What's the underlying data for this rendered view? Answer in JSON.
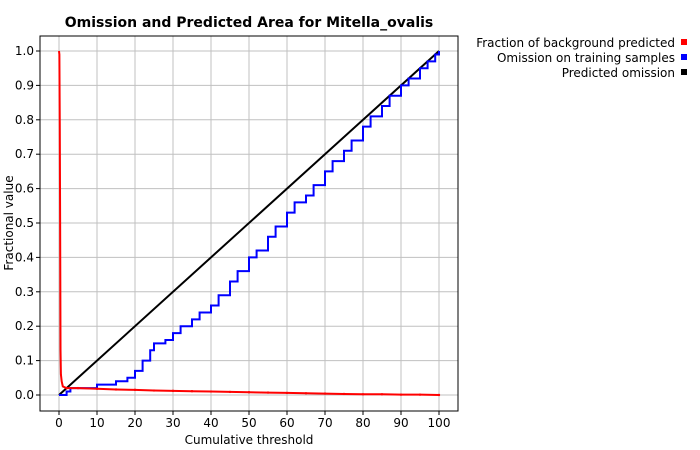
{
  "chart_data": {
    "type": "line",
    "title": "Omission and Predicted Area for Mitella_ovalis",
    "xlabel": "Cumulative threshold",
    "ylabel": "Fractional value",
    "xlim": [
      0,
      100
    ],
    "ylim": [
      0,
      1
    ],
    "x_ticks": [
      "0",
      "10",
      "20",
      "30",
      "40",
      "50",
      "60",
      "70",
      "80",
      "90",
      "100"
    ],
    "y_ticks": [
      "0.0",
      "0.1",
      "0.2",
      "0.3",
      "0.4",
      "0.5",
      "0.6",
      "0.7",
      "0.8",
      "0.9",
      "1.0"
    ],
    "x_tick_values": [
      0,
      10,
      20,
      30,
      40,
      50,
      60,
      70,
      80,
      90,
      100
    ],
    "y_tick_values": [
      0,
      0.1,
      0.2,
      0.3,
      0.4,
      0.5,
      0.6,
      0.7,
      0.8,
      0.9,
      1.0
    ],
    "grid": true,
    "legend_position": "top-right, outside plot",
    "series": [
      {
        "name": "Fraction of background predicted",
        "color": "#ff0000",
        "x": [
          0,
          0.1,
          0.2,
          0.3,
          0.4,
          0.5,
          0.7,
          1,
          2,
          5,
          10,
          15,
          20,
          25,
          30,
          35,
          40,
          45,
          50,
          55,
          60,
          65,
          70,
          75,
          80,
          85,
          90,
          95,
          100
        ],
        "y": [
          1.0,
          0.99,
          0.79,
          0.5,
          0.13,
          0.06,
          0.04,
          0.025,
          0.02,
          0.02,
          0.018,
          0.016,
          0.015,
          0.013,
          0.012,
          0.011,
          0.01,
          0.009,
          0.008,
          0.007,
          0.006,
          0.005,
          0.004,
          0.003,
          0.002,
          0.002,
          0.001,
          0.001,
          0.0
        ]
      },
      {
        "name": "Omission on training samples",
        "color": "#0000ff",
        "x": [
          0,
          1,
          2,
          3,
          5,
          8,
          10,
          12,
          15,
          18,
          20,
          22,
          24,
          25,
          28,
          30,
          32,
          35,
          37,
          40,
          42,
          45,
          47,
          50,
          52,
          55,
          57,
          60,
          62,
          65,
          67,
          70,
          72,
          75,
          77,
          80,
          82,
          85,
          87,
          90,
          92,
          95,
          97,
          99,
          100
        ],
        "y": [
          0.0,
          0.0,
          0.01,
          0.02,
          0.02,
          0.02,
          0.03,
          0.03,
          0.04,
          0.05,
          0.07,
          0.1,
          0.13,
          0.15,
          0.16,
          0.18,
          0.2,
          0.22,
          0.24,
          0.26,
          0.29,
          0.33,
          0.36,
          0.4,
          0.42,
          0.46,
          0.49,
          0.53,
          0.56,
          0.58,
          0.61,
          0.65,
          0.68,
          0.71,
          0.74,
          0.78,
          0.81,
          0.84,
          0.87,
          0.9,
          0.92,
          0.95,
          0.97,
          0.99,
          1.0
        ]
      },
      {
        "name": "Predicted omission",
        "color": "#000000",
        "x": [
          0,
          100
        ],
        "y": [
          0,
          1
        ]
      }
    ]
  }
}
